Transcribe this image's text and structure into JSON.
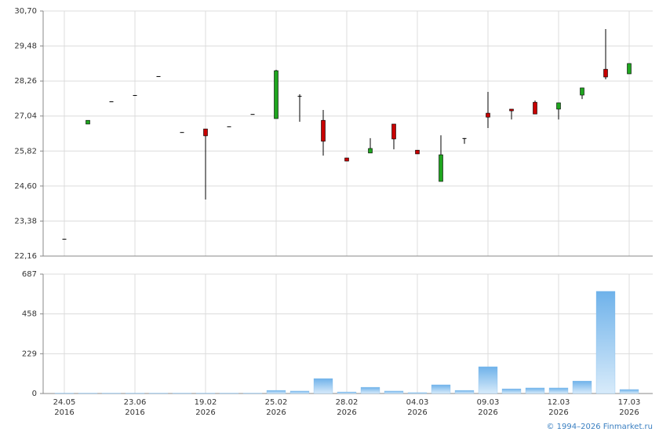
{
  "chart_data": [
    {
      "type": "candlestick",
      "open": [
        22.76,
        26.76,
        27.55,
        27.77,
        28.43,
        26.48,
        26.59,
        26.68,
        27.11,
        26.95,
        27.74,
        26.89,
        25.58,
        25.75,
        26.76,
        25.85,
        24.76,
        26.27,
        27.14,
        27.28,
        27.52,
        27.28,
        27.77,
        28.67,
        28.51
      ],
      "high": [
        22.76,
        26.89,
        27.55,
        27.77,
        28.43,
        26.48,
        26.59,
        26.68,
        27.11,
        28.65,
        27.8,
        27.25,
        25.58,
        26.27,
        26.76,
        25.85,
        26.37,
        26.27,
        27.88,
        27.28,
        27.58,
        27.5,
        28.02,
        30.07,
        28.87
      ],
      "low": [
        22.76,
        26.76,
        27.55,
        27.77,
        28.43,
        26.48,
        24.13,
        26.68,
        27.11,
        26.95,
        26.84,
        25.66,
        25.47,
        25.75,
        25.88,
        25.72,
        24.76,
        26.07,
        26.62,
        26.92,
        27.11,
        26.92,
        27.63,
        28.32,
        28.51
      ],
      "close": [
        22.76,
        26.89,
        27.55,
        27.77,
        28.43,
        26.48,
        26.35,
        26.68,
        27.11,
        28.62,
        27.74,
        26.16,
        25.47,
        25.91,
        26.24,
        25.72,
        25.69,
        26.27,
        27.0,
        27.22,
        27.11,
        27.5,
        28.02,
        28.4,
        28.87
      ],
      "up_color": "#1fa51f",
      "down_color": "#c80000",
      "flat_color": "#000000",
      "ylim": [
        22.16,
        30.7
      ],
      "yticks": [
        {
          "value": 22.16,
          "label": "22,16"
        },
        {
          "value": 23.38,
          "label": "23,38"
        },
        {
          "value": 24.6,
          "label": "24,60"
        },
        {
          "value": 25.82,
          "label": "25,82"
        },
        {
          "value": 27.04,
          "label": "27,04"
        },
        {
          "value": 28.26,
          "label": "28,26"
        },
        {
          "value": 29.48,
          "label": "29,48"
        },
        {
          "value": 30.7,
          "label": "30,70"
        }
      ],
      "grid": true
    },
    {
      "type": "bar",
      "categories": [
        {
          "date": "24.05",
          "year": "2016"
        },
        null,
        null,
        {
          "date": "23.06",
          "year": "2016"
        },
        null,
        null,
        {
          "date": "19.02",
          "year": "2026"
        },
        null,
        null,
        {
          "date": "25.02",
          "year": "2026"
        },
        null,
        null,
        {
          "date": "28.02",
          "year": "2026"
        },
        null,
        null,
        {
          "date": "04.03",
          "year": "2026"
        },
        null,
        null,
        {
          "date": "09.03",
          "year": "2026"
        },
        null,
        null,
        {
          "date": "12.03",
          "year": "2026"
        },
        null,
        null,
        {
          "date": "17.03",
          "year": "2026"
        }
      ],
      "values": [
        2,
        2,
        2,
        2,
        2,
        2,
        2,
        2,
        2,
        18,
        14,
        86,
        9,
        36,
        14,
        5,
        50,
        18,
        154,
        27,
        32,
        32,
        72,
        588,
        23
      ],
      "color": "#7ab8ea",
      "ylim": [
        0,
        687
      ],
      "yticks": [
        0,
        229,
        458,
        687
      ],
      "grid": true
    },
    {
      "type": "credit",
      "text": "© 1994–2026 Finmarket.ru"
    }
  ]
}
